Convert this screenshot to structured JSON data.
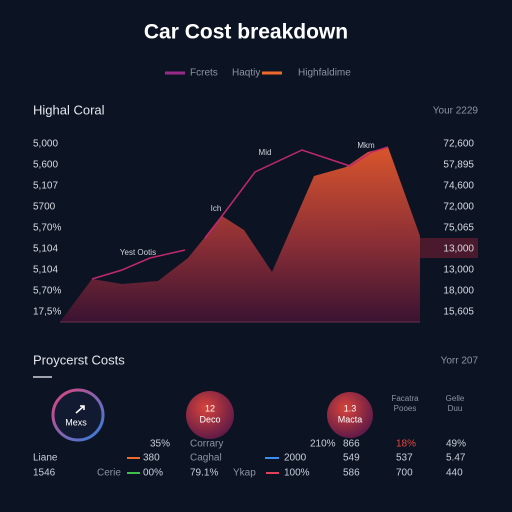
{
  "title": "Car Cost breakdown",
  "legend": [
    "Fcrets",
    "Haqtiy",
    "Highfaldime"
  ],
  "main": {
    "title": "Highal Coral",
    "period": "Your 2229",
    "left_labels": [
      "5,000",
      "5,600",
      "5,107",
      "5700",
      "5,70%",
      "5,104",
      "5,104",
      "5,70%",
      "17,5%"
    ],
    "right_labels": [
      "72,600",
      "57,895",
      "74,600",
      "72,000",
      "75,065",
      "13,000",
      "13,000",
      "18,000",
      "15,605"
    ],
    "annotations": [
      "Mid",
      "Mkm",
      "Ich",
      "Yest Ootis"
    ]
  },
  "bottom": {
    "title": "Proycerst Costs",
    "period": "Yorr 207",
    "circles": [
      "Mexs",
      [
        "12",
        "Deco"
      ],
      [
        "1.3",
        "Macta"
      ]
    ],
    "headers": [
      [
        "Facatra",
        "Pooes"
      ],
      [
        "Gelle",
        "Duu"
      ]
    ],
    "rows": [
      [
        "35%",
        "Corrary",
        "210%",
        "866",
        "18%",
        "49%"
      ],
      [
        "Liane",
        "380",
        "Caghal",
        "2000",
        "549",
        "537",
        "5.47"
      ],
      [
        "1546",
        "Cerie",
        "00%",
        "79.1%",
        "Ykap",
        "100%",
        "586",
        "700",
        "440"
      ]
    ]
  }
}
